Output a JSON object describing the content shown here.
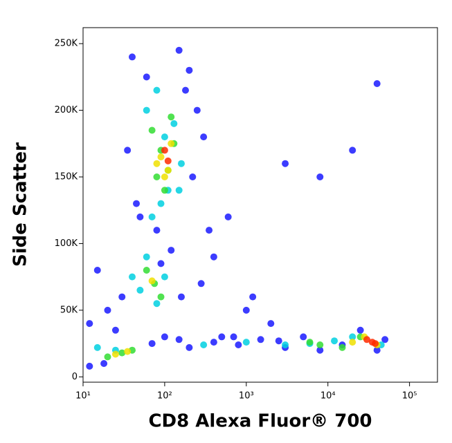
{
  "chart_data": {
    "type": "scatter",
    "x_label": "CD8 Alexa Fluor® 700",
    "y_label": "Side Scatter",
    "xscale": "log",
    "xlim": [
      10,
      220000
    ],
    "ylim": [
      -4000,
      262000
    ],
    "xticks": [
      {
        "value": 10,
        "label": "10¹"
      },
      {
        "value": 100,
        "label": "10²"
      },
      {
        "value": 1000,
        "label": "10³"
      },
      {
        "value": 10000,
        "label": "10⁴"
      },
      {
        "value": 100000,
        "label": "10⁵"
      }
    ],
    "yticks": [
      0,
      {
        "value": 50000,
        "label": "50K"
      },
      {
        "value": 100000,
        "label": "100K"
      },
      {
        "value": 150000,
        "label": "150K"
      },
      {
        "value": 200000,
        "label": "200K"
      },
      {
        "value": 250000,
        "label": "250K"
      }
    ],
    "series": [
      {
        "color": "#1a1aff",
        "x": [
          40,
          60,
          150,
          200,
          250,
          300,
          35,
          45,
          80,
          180,
          220,
          120,
          90,
          50,
          30,
          20,
          15,
          12,
          25,
          160,
          280,
          400,
          600,
          1000,
          2000,
          350,
          500,
          150,
          100,
          70,
          200,
          400,
          800,
          1500,
          3000,
          5000,
          8000,
          15000,
          25000,
          40000,
          50000,
          12,
          18,
          700,
          2500,
          3000,
          8000,
          20000,
          40000,
          1200
        ],
        "y": [
          240000,
          225000,
          245000,
          230000,
          200000,
          180000,
          170000,
          130000,
          110000,
          215000,
          150000,
          95000,
          85000,
          120000,
          60000,
          50000,
          80000,
          40000,
          35000,
          60000,
          70000,
          90000,
          120000,
          50000,
          40000,
          110000,
          30000,
          28000,
          30000,
          25000,
          22000,
          26000,
          24000,
          28000,
          22000,
          30000,
          20000,
          24000,
          35000,
          20000,
          28000,
          8000,
          10000,
          30000,
          27000,
          160000,
          150000,
          170000,
          220000,
          60000
        ]
      },
      {
        "color": "#00d0e0",
        "x": [
          60,
          80,
          100,
          130,
          160,
          90,
          70,
          110,
          150,
          60,
          50,
          80,
          100,
          40,
          25,
          15,
          300,
          1000,
          3000,
          6000,
          12000,
          20000,
          45000
        ],
        "y": [
          200000,
          215000,
          180000,
          190000,
          160000,
          130000,
          120000,
          140000,
          140000,
          90000,
          65000,
          55000,
          75000,
          75000,
          20000,
          22000,
          24000,
          26000,
          24000,
          25000,
          27000,
          30000,
          24000
        ]
      },
      {
        "color": "#33dd33",
        "x": [
          70,
          90,
          110,
          130,
          100,
          80,
          120,
          60,
          75,
          90,
          30,
          20,
          40,
          6000,
          8000,
          15000,
          25000
        ],
        "y": [
          185000,
          170000,
          155000,
          175000,
          140000,
          150000,
          195000,
          80000,
          70000,
          60000,
          18000,
          15000,
          20000,
          26000,
          24000,
          22000,
          30000
        ]
      },
      {
        "color": "#f0e000",
        "x": [
          90,
          110,
          120,
          100,
          80,
          70,
          25,
          35,
          20000,
          28000,
          40000
        ],
        "y": [
          165000,
          155000,
          175000,
          150000,
          160000,
          72000,
          17000,
          19000,
          26000,
          30000,
          24000
        ]
      },
      {
        "color": "#ff2a00",
        "x": [
          110,
          100,
          30000,
          35000,
          38000
        ],
        "y": [
          162000,
          170000,
          28000,
          26000,
          25000
        ]
      }
    ]
  }
}
